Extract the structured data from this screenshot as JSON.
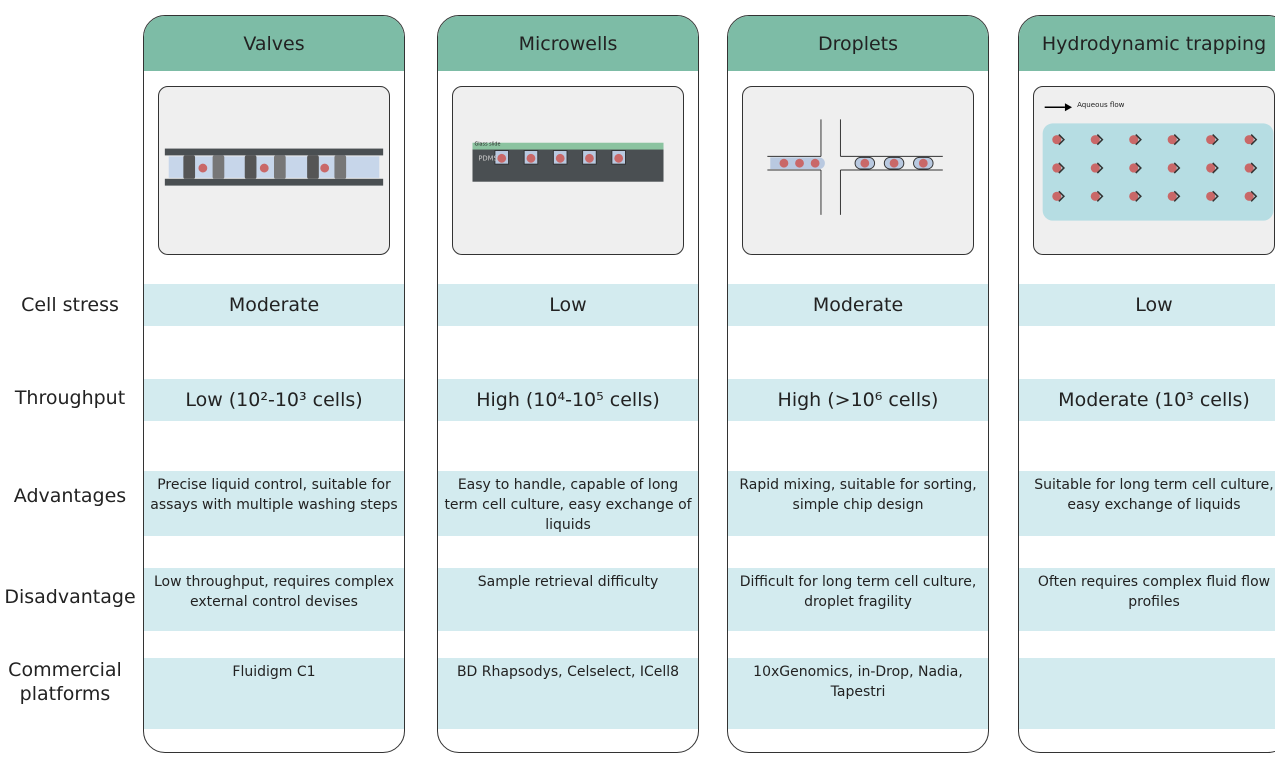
{
  "row_labels": [
    "Cell stress",
    "Throughput",
    "Advantages",
    "Disadvantage",
    "Commercial platforms"
  ],
  "columns": [
    {
      "title": "Valves",
      "cell_stress": "Moderate",
      "throughput": "Low (10²-10³ cells)",
      "advantages": "Precise liquid control, suitable for assays with multiple washing steps",
      "disadvantage": "Low throughput, requires complex external control devises",
      "commercial": "Fluidigm C1"
    },
    {
      "title": "Microwells",
      "illustration_labels": [
        "Glass slide",
        "PDMS"
      ],
      "cell_stress": "Low",
      "throughput": "High (10⁴-10⁵  cells)",
      "advantages": "Easy to handle, capable of long term cell culture, easy exchange of liquids",
      "disadvantage": "Sample retrieval difficulty",
      "commercial": "BD Rhapsodys, Celselect, ICell8"
    },
    {
      "title": "Droplets",
      "cell_stress": "Moderate",
      "throughput": "High (>10⁶  cells)",
      "advantages": "Rapid mixing, suitable for sorting, simple chip design",
      "disadvantage": "Difficult for long term cell culture, droplet fragility",
      "commercial": "10xGenomics, in-Drop, Nadia, Tapestri"
    },
    {
      "title": "Hydrodynamic trapping",
      "illustration_labels": [
        "Aqueous flow"
      ],
      "cell_stress": "Low",
      "throughput": "Moderate (10³ cells)",
      "advantages": "Suitable for long term cell culture, easy exchange of liquids",
      "disadvantage": "Often requires complex fluid flow profiles"
    }
  ]
}
